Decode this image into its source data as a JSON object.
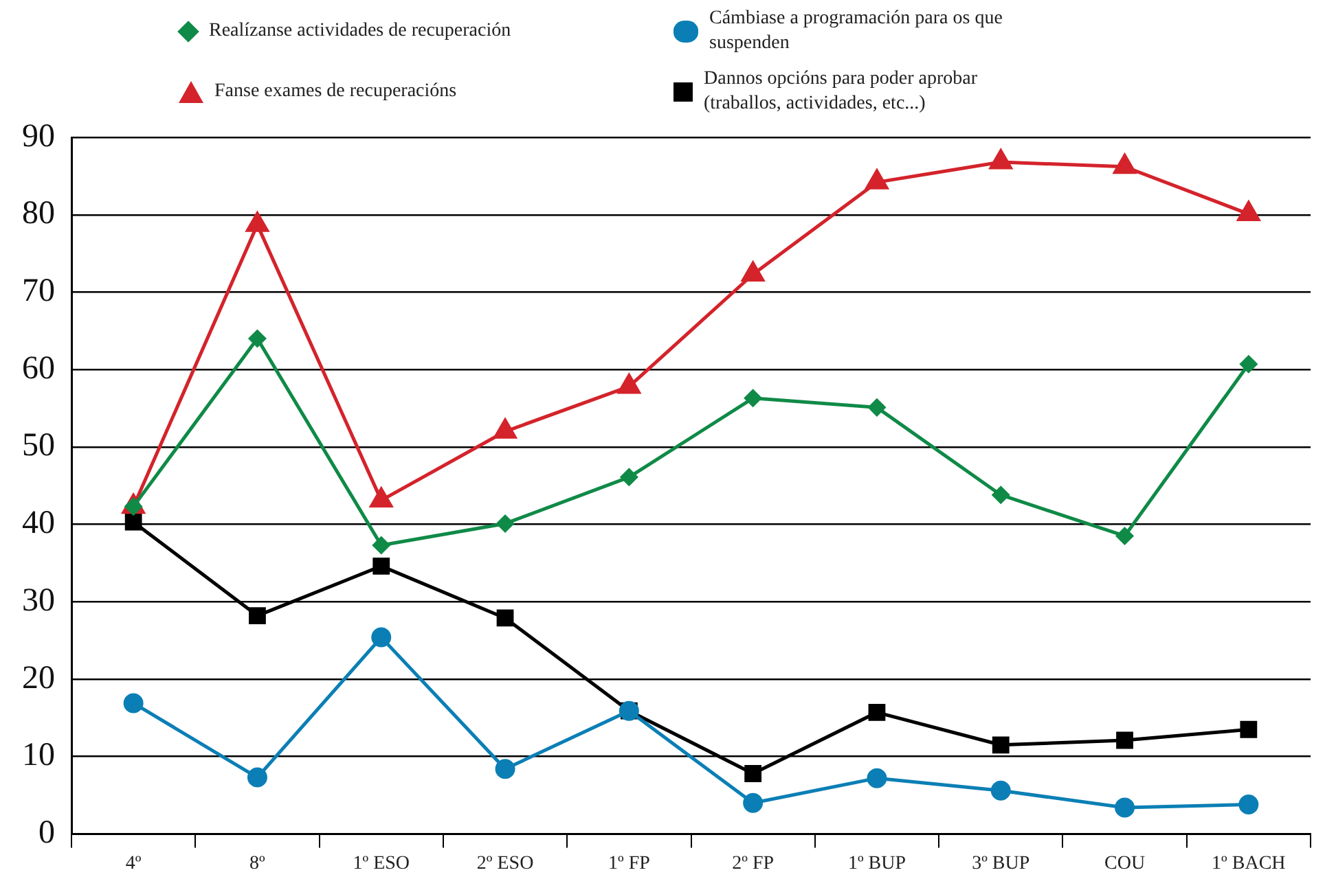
{
  "chart_data": {
    "type": "line",
    "categories": [
      "4º",
      "8º",
      "1º ESO",
      "2º ESO",
      "1º FP",
      "2º FP",
      "1º BUP",
      "3º BUP",
      "COU",
      "1º BACH"
    ],
    "series": [
      {
        "name": "Realízanse actividades de recuperación",
        "color": "#0f8a47",
        "marker": "diamond",
        "values": [
          42.3,
          64.0,
          37.3,
          40.1,
          46.1,
          56.3,
          55.1,
          43.8,
          38.5,
          60.7
        ]
      },
      {
        "name": "Cámbiase a programación para os que suspenden",
        "color": "#0b7fb5",
        "marker": "circle",
        "values": [
          16.9,
          7.3,
          25.4,
          8.4,
          15.9,
          4.0,
          7.2,
          5.6,
          3.4,
          3.8
        ]
      },
      {
        "name": "Fanse exames de recuperacións",
        "color": "#d4232b",
        "marker": "triangle",
        "values": [
          42.3,
          78.7,
          43.1,
          52.0,
          57.8,
          72.3,
          84.2,
          86.8,
          86.2,
          80.1
        ]
      },
      {
        "name": "Dannos opcións para poder aprobar (traballos, actividades, etc...)",
        "color": "#000000",
        "marker": "square",
        "values": [
          40.3,
          28.2,
          34.6,
          27.9,
          15.9,
          7.8,
          15.7,
          11.5,
          12.1,
          13.5
        ]
      }
    ],
    "ylim": [
      0,
      90
    ],
    "yticks": [
      0,
      10,
      20,
      30,
      40,
      50,
      60,
      70,
      80,
      90
    ],
    "grid": "y",
    "legend": "top",
    "line_style": "solid"
  }
}
